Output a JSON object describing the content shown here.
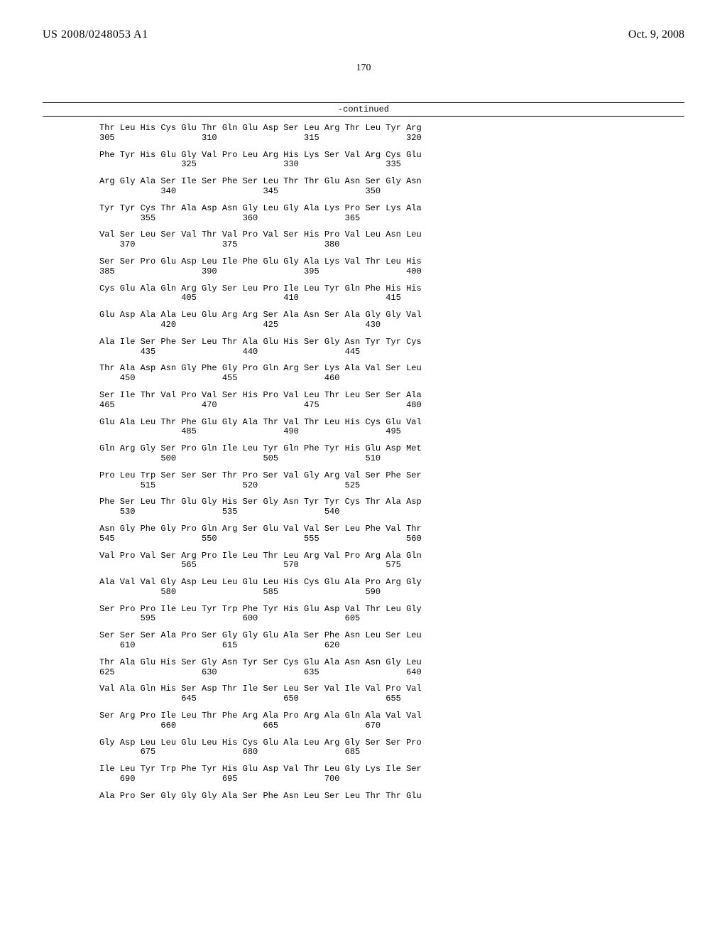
{
  "header": {
    "publication_number": "US 2008/0248053 A1",
    "publication_date": "Oct. 9, 2008"
  },
  "page_number": "170",
  "continued_label": "-continued",
  "sequence_rows": [
    {
      "aa": "Thr Leu His Cys Glu Thr Gln Glu Asp Ser Leu Arg Thr Leu Tyr Arg",
      "nums": "305                 310                 315                 320"
    },
    {
      "aa": "Phe Tyr His Glu Gly Val Pro Leu Arg His Lys Ser Val Arg Cys Glu",
      "nums": "                325                 330                 335"
    },
    {
      "aa": "Arg Gly Ala Ser Ile Ser Phe Ser Leu Thr Thr Glu Asn Ser Gly Asn",
      "nums": "            340                 345                 350"
    },
    {
      "aa": "Tyr Tyr Cys Thr Ala Asp Asn Gly Leu Gly Ala Lys Pro Ser Lys Ala",
      "nums": "        355                 360                 365"
    },
    {
      "aa": "Val Ser Leu Ser Val Thr Val Pro Val Ser His Pro Val Leu Asn Leu",
      "nums": "    370                 375                 380"
    },
    {
      "aa": "Ser Ser Pro Glu Asp Leu Ile Phe Glu Gly Ala Lys Val Thr Leu His",
      "nums": "385                 390                 395                 400"
    },
    {
      "aa": "Cys Glu Ala Gln Arg Gly Ser Leu Pro Ile Leu Tyr Gln Phe His His",
      "nums": "                405                 410                 415"
    },
    {
      "aa": "Glu Asp Ala Ala Leu Glu Arg Arg Ser Ala Asn Ser Ala Gly Gly Val",
      "nums": "            420                 425                 430"
    },
    {
      "aa": "Ala Ile Ser Phe Ser Leu Thr Ala Glu His Ser Gly Asn Tyr Tyr Cys",
      "nums": "        435                 440                 445"
    },
    {
      "aa": "Thr Ala Asp Asn Gly Phe Gly Pro Gln Arg Ser Lys Ala Val Ser Leu",
      "nums": "    450                 455                 460"
    },
    {
      "aa": "Ser Ile Thr Val Pro Val Ser His Pro Val Leu Thr Leu Ser Ser Ala",
      "nums": "465                 470                 475                 480"
    },
    {
      "aa": "Glu Ala Leu Thr Phe Glu Gly Ala Thr Val Thr Leu His Cys Glu Val",
      "nums": "                485                 490                 495"
    },
    {
      "aa": "Gln Arg Gly Ser Pro Gln Ile Leu Tyr Gln Phe Tyr His Glu Asp Met",
      "nums": "            500                 505                 510"
    },
    {
      "aa": "Pro Leu Trp Ser Ser Ser Thr Pro Ser Val Gly Arg Val Ser Phe Ser",
      "nums": "        515                 520                 525"
    },
    {
      "aa": "Phe Ser Leu Thr Glu Gly His Ser Gly Asn Tyr Tyr Cys Thr Ala Asp",
      "nums": "    530                 535                 540"
    },
    {
      "aa": "Asn Gly Phe Gly Pro Gln Arg Ser Glu Val Val Ser Leu Phe Val Thr",
      "nums": "545                 550                 555                 560"
    },
    {
      "aa": "Val Pro Val Ser Arg Pro Ile Leu Thr Leu Arg Val Pro Arg Ala Gln",
      "nums": "                565                 570                 575"
    },
    {
      "aa": "Ala Val Val Gly Asp Leu Leu Glu Leu His Cys Glu Ala Pro Arg Gly",
      "nums": "            580                 585                 590"
    },
    {
      "aa": "Ser Pro Pro Ile Leu Tyr Trp Phe Tyr His Glu Asp Val Thr Leu Gly",
      "nums": "        595                 600                 605"
    },
    {
      "aa": "Ser Ser Ser Ala Pro Ser Gly Gly Glu Ala Ser Phe Asn Leu Ser Leu",
      "nums": "    610                 615                 620"
    },
    {
      "aa": "Thr Ala Glu His Ser Gly Asn Tyr Ser Cys Glu Ala Asn Asn Gly Leu",
      "nums": "625                 630                 635                 640"
    },
    {
      "aa": "Val Ala Gln His Ser Asp Thr Ile Ser Leu Ser Val Ile Val Pro Val",
      "nums": "                645                 650                 655"
    },
    {
      "aa": "Ser Arg Pro Ile Leu Thr Phe Arg Ala Pro Arg Ala Gln Ala Val Val",
      "nums": "            660                 665                 670"
    },
    {
      "aa": "Gly Asp Leu Leu Glu Leu His Cys Glu Ala Leu Arg Gly Ser Ser Pro",
      "nums": "        675                 680                 685"
    },
    {
      "aa": "Ile Leu Tyr Trp Phe Tyr His Glu Asp Val Thr Leu Gly Lys Ile Ser",
      "nums": "    690                 695                 700"
    },
    {
      "aa": "Ala Pro Ser Gly Gly Gly Ala Ser Phe Asn Leu Ser Leu Thr Thr Glu",
      "nums": ""
    }
  ]
}
